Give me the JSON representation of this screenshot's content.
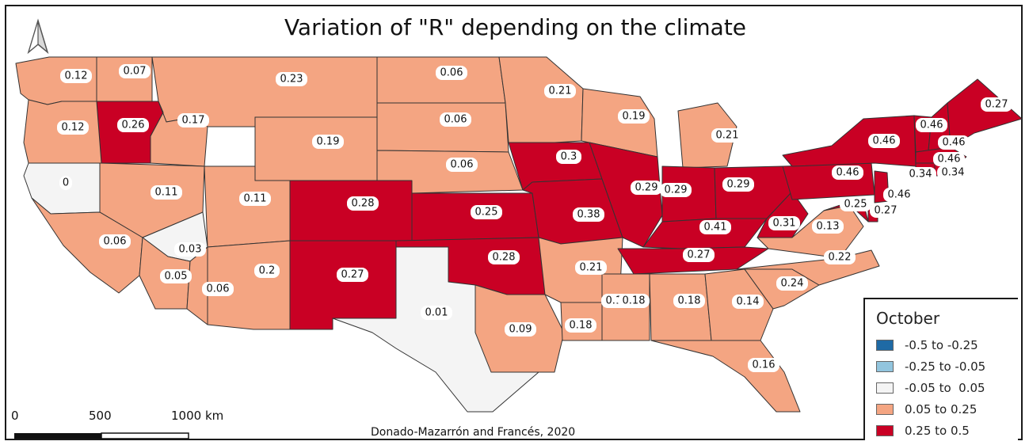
{
  "title": "Variation of \"R\" depending on the climate",
  "credit": "Donado-Mazarrón and Francés, 2020",
  "north_arrow": "north-arrow-icon",
  "scale_bar": {
    "labels": [
      "0",
      "500",
      "1000 km"
    ]
  },
  "legend": {
    "title": "October",
    "items": [
      {
        "label": "-0.5 to -0.25",
        "color": "#1f6aa5"
      },
      {
        "label": "-0.25 to -0.05",
        "color": "#92c5de"
      },
      {
        "label": "-0.05 to  0.05",
        "color": "#f4f4f4"
      },
      {
        "label": "0.05 to 0.25",
        "color": "#f4a582"
      },
      {
        "label": "0.25 to 0.5",
        "color": "#c90024"
      }
    ]
  },
  "states": [
    {
      "name": "WA",
      "value": "0.12"
    },
    {
      "name": "OR",
      "value": "0.12"
    },
    {
      "name": "CA",
      "value": "0.06"
    },
    {
      "name": "NV",
      "value": "0.11"
    },
    {
      "name": "ID",
      "value": "0.17"
    },
    {
      "name": "MT",
      "value": "0.23"
    },
    {
      "name": "WY",
      "value": "0.19"
    },
    {
      "name": "UT",
      "value": "0.11"
    },
    {
      "name": "AZ",
      "value": "0.2"
    },
    {
      "name": "CO",
      "value": "0.28"
    },
    {
      "name": "NM",
      "value": "0.27"
    },
    {
      "name": "ND",
      "value": "0.06"
    },
    {
      "name": "SD",
      "value": "0.06"
    },
    {
      "name": "NE",
      "value": "0.06"
    },
    {
      "name": "KS",
      "value": "0.25"
    },
    {
      "name": "OK",
      "value": "0.28"
    },
    {
      "name": "TX",
      "value": "0.01"
    },
    {
      "name": "MN",
      "value": "0.21"
    },
    {
      "name": "IA",
      "value": "0.3"
    },
    {
      "name": "MO",
      "value": "0.38"
    },
    {
      "name": "AR",
      "value": "0.21"
    },
    {
      "name": "LA",
      "value": "0.18"
    },
    {
      "name": "WI",
      "value": "0.19"
    },
    {
      "name": "IL",
      "value": "0.29"
    },
    {
      "name": "MI",
      "value": "0.21"
    },
    {
      "name": "IN",
      "value": "0.29"
    },
    {
      "name": "OH",
      "value": "0.29"
    },
    {
      "name": "KY",
      "value": "0.41"
    },
    {
      "name": "TN",
      "value": "0.27"
    },
    {
      "name": "MS",
      "value": "0.18"
    },
    {
      "name": "AL",
      "value": "0.18"
    },
    {
      "name": "GA",
      "value": "0.14"
    },
    {
      "name": "FL",
      "value": "0.16"
    },
    {
      "name": "SC",
      "value": "0.24"
    },
    {
      "name": "NC",
      "value": "0.22"
    },
    {
      "name": "VA",
      "value": "0.13"
    },
    {
      "name": "WV",
      "value": "0.31"
    },
    {
      "name": "PA",
      "value": "0.46"
    },
    {
      "name": "NY",
      "value": "0.46"
    },
    {
      "name": "VT",
      "value": "0.46"
    },
    {
      "name": "NH",
      "value": "0.46"
    },
    {
      "name": "ME",
      "value": "0.27"
    },
    {
      "name": "MA",
      "value": "0.46"
    },
    {
      "name": "CT",
      "value": "0.34"
    },
    {
      "name": "RI",
      "value": "0.34"
    },
    {
      "name": "NJ",
      "value": "0.46"
    },
    {
      "name": "DE",
      "value": "0.27"
    },
    {
      "name": "MD",
      "value": "0.25"
    },
    {
      "name": "NV-S",
      "value": "0.03"
    },
    {
      "name": "CA-SE",
      "value": "0.05"
    },
    {
      "name": "CA-NE",
      "value": "0"
    },
    {
      "name": "AZ-W",
      "value": "0.06"
    },
    {
      "name": "ID-W",
      "value": "0.26"
    },
    {
      "name": "MT-W",
      "value": "0.07"
    },
    {
      "name": "MS-W",
      "value": "0.18"
    },
    {
      "name": "TX-E",
      "value": "0.09"
    }
  ]
}
